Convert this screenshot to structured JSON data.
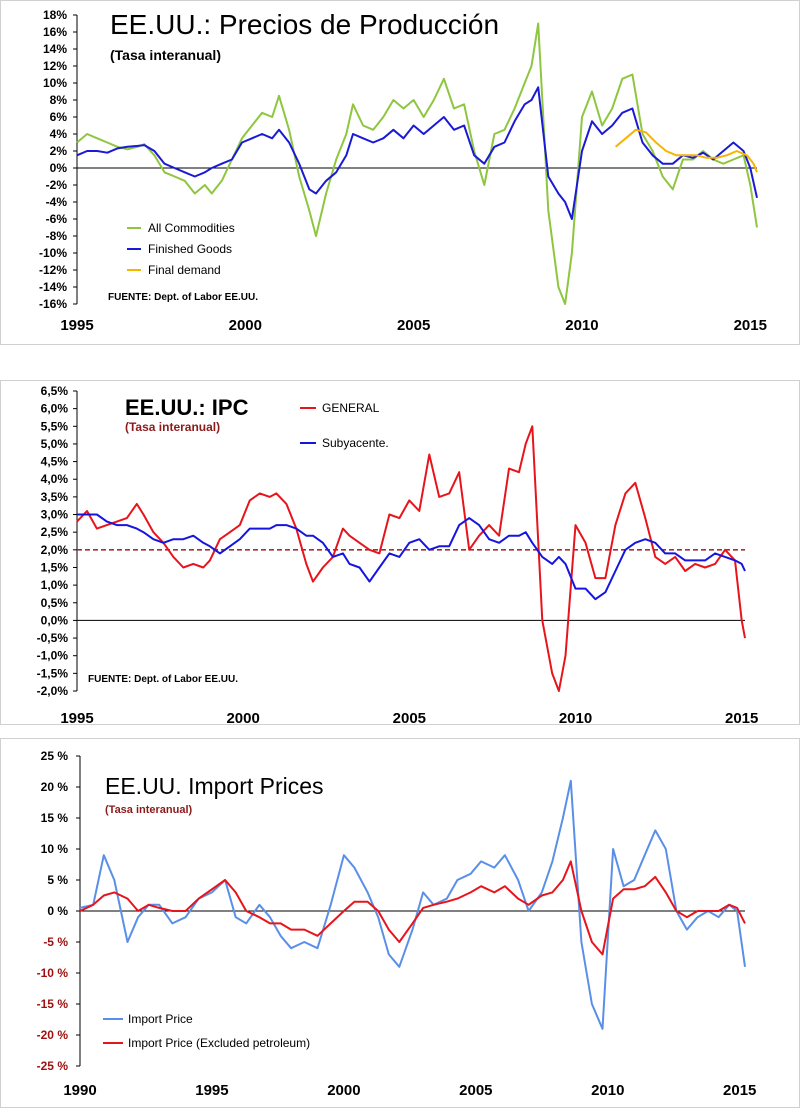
{
  "chart_data": [
    {
      "type": "line",
      "title": "EE.UU.: Precios de Producción",
      "subtitle": "(Tasa interanual)",
      "source": "FUENTE: Dept. of Labor EE.UU.",
      "y_tick_labels": [
        "18%",
        "16%",
        "14%",
        "12%",
        "10%",
        "8%",
        "6%",
        "4%",
        "2%",
        "0%",
        "-2%",
        "-4%",
        "-6%",
        "-8%",
        "-10%",
        "-12%",
        "-14%",
        "-16%"
      ],
      "x_tick_labels": [
        "1995",
        "2000",
        "2005",
        "2010",
        "2015"
      ],
      "ylim": [
        -16,
        18
      ],
      "xlim": [
        1995,
        2015.2
      ],
      "grid": false,
      "colors": {
        "All Commodities": "#8ec63f",
        "Finished Goods": "#1a1ad6",
        "Final demand": "#f7b500"
      },
      "series": [
        {
          "name": "All Commodities",
          "x": [
            1995.0,
            1995.3,
            1995.6,
            1995.9,
            1996.2,
            1996.5,
            1996.8,
            1997.0,
            1997.3,
            1997.6,
            1997.9,
            1998.2,
            1998.5,
            1998.8,
            1999.0,
            1999.3,
            1999.6,
            1999.9,
            2000.2,
            2000.5,
            2000.8,
            2001.0,
            2001.3,
            2001.6,
            2001.9,
            2002.1,
            2002.4,
            2002.7,
            2003.0,
            2003.2,
            2003.5,
            2003.8,
            2004.1,
            2004.4,
            2004.7,
            2005.0,
            2005.3,
            2005.6,
            2005.9,
            2006.2,
            2006.5,
            2006.8,
            2007.1,
            2007.4,
            2007.7,
            2008.0,
            2008.3,
            2008.5,
            2008.7,
            2009.0,
            2009.3,
            2009.5,
            2009.7,
            2010.0,
            2010.3,
            2010.6,
            2010.9,
            2011.2,
            2011.5,
            2011.8,
            2012.1,
            2012.4,
            2012.7,
            2013.0,
            2013.3,
            2013.6,
            2013.9,
            2014.2,
            2014.5,
            2014.8,
            2015.0,
            2015.2
          ],
          "y": [
            3.0,
            4.0,
            3.5,
            3.0,
            2.5,
            2.2,
            2.5,
            2.8,
            1.5,
            -0.5,
            -1.0,
            -1.5,
            -3.0,
            -2.0,
            -3.0,
            -1.5,
            1.0,
            3.5,
            5.0,
            6.5,
            6.0,
            8.5,
            4.5,
            -1.0,
            -5.0,
            -8.0,
            -3.0,
            1.0,
            4.0,
            7.5,
            5.0,
            4.5,
            6.0,
            8.0,
            7.0,
            8.0,
            6.0,
            8.0,
            10.5,
            7.0,
            7.5,
            2.0,
            -2.0,
            4.0,
            4.5,
            7.0,
            10.0,
            12.0,
            17.0,
            -5.0,
            -14.0,
            -16.0,
            -10.0,
            6.0,
            9.0,
            5.0,
            7.0,
            10.5,
            11.0,
            4.0,
            2.0,
            -1.0,
            -2.5,
            1.0,
            1.0,
            2.0,
            1.0,
            0.5,
            1.0,
            1.5,
            -2.0,
            -7.0
          ]
        },
        {
          "name": "Finished Goods",
          "x": [
            1995.0,
            1995.3,
            1995.6,
            1995.9,
            1996.2,
            1996.5,
            1996.8,
            1997.0,
            1997.3,
            1997.6,
            1997.9,
            1998.2,
            1998.5,
            1998.8,
            1999.0,
            1999.3,
            1999.6,
            1999.9,
            2000.2,
            2000.5,
            2000.8,
            2001.0,
            2001.3,
            2001.6,
            2001.9,
            2002.1,
            2002.4,
            2002.7,
            2003.0,
            2003.2,
            2003.5,
            2003.8,
            2004.1,
            2004.4,
            2004.7,
            2005.0,
            2005.3,
            2005.6,
            2005.9,
            2006.2,
            2006.5,
            2006.8,
            2007.1,
            2007.4,
            2007.7,
            2008.0,
            2008.3,
            2008.5,
            2008.7,
            2009.0,
            2009.3,
            2009.5,
            2009.7,
            2010.0,
            2010.3,
            2010.6,
            2010.9,
            2011.2,
            2011.5,
            2011.8,
            2012.1,
            2012.4,
            2012.7,
            2013.0,
            2013.3,
            2013.6,
            2013.9,
            2014.2,
            2014.5,
            2014.8,
            2015.0,
            2015.2
          ],
          "y": [
            1.5,
            2.0,
            2.0,
            1.8,
            2.3,
            2.5,
            2.6,
            2.7,
            2.0,
            0.5,
            0.0,
            -0.5,
            -1.0,
            -0.5,
            0.0,
            0.5,
            1.0,
            3.0,
            3.5,
            4.0,
            3.5,
            4.5,
            3.0,
            0.5,
            -2.5,
            -3.0,
            -1.5,
            -0.5,
            1.5,
            4.0,
            3.5,
            3.0,
            3.5,
            4.5,
            3.5,
            5.0,
            4.0,
            5.0,
            6.0,
            4.5,
            5.0,
            1.5,
            0.5,
            2.5,
            3.0,
            5.5,
            7.5,
            8.0,
            9.5,
            -1.0,
            -3.0,
            -4.0,
            -6.0,
            2.0,
            5.5,
            4.0,
            5.0,
            6.5,
            7.0,
            3.0,
            1.5,
            0.5,
            0.5,
            1.5,
            1.2,
            1.8,
            1.0,
            2.0,
            3.0,
            2.0,
            0.0,
            -3.5
          ]
        },
        {
          "name": "Final demand",
          "x": [
            2011.0,
            2011.3,
            2011.6,
            2011.9,
            2012.2,
            2012.5,
            2012.8,
            2013.1,
            2013.4,
            2013.7,
            2014.0,
            2014.3,
            2014.6,
            2014.9,
            2015.1,
            2015.2
          ],
          "y": [
            2.5,
            3.5,
            4.5,
            4.2,
            3.0,
            2.0,
            1.5,
            1.5,
            1.5,
            1.2,
            1.2,
            1.5,
            2.0,
            1.5,
            0.5,
            -0.5
          ]
        }
      ]
    },
    {
      "type": "line",
      "title": "EE.UU.: IPC",
      "subtitle": "(Tasa interanual)",
      "source": "FUENTE: Dept. of Labor EE.UU.",
      "y_tick_labels": [
        "6,5%",
        "6,0%",
        "5,5%",
        "5,0%",
        "4,5%",
        "4,0%",
        "3,5%",
        "3,0%",
        "2,5%",
        "2,0%",
        "1,5%",
        "1,0%",
        "0,5%",
        "0,0%",
        "-0,5%",
        "-1,0%",
        "-1,5%",
        "-2,0%"
      ],
      "x_tick_labels": [
        "1995",
        "2000",
        "2005",
        "2010",
        "2015"
      ],
      "ylim": [
        -2.0,
        6.5
      ],
      "xlim": [
        1995,
        2015.1
      ],
      "grid": false,
      "reference_line": 2.0,
      "colors": {
        "GENERAL": "#e8141c",
        "Subyacente.": "#1515e0",
        "reference": "#a03030"
      },
      "series": [
        {
          "name": "GENERAL",
          "x": [
            1995.0,
            1995.3,
            1995.6,
            1995.9,
            1996.2,
            1996.5,
            1996.8,
            1997.0,
            1997.3,
            1997.6,
            1997.9,
            1998.2,
            1998.5,
            1998.8,
            1999.0,
            1999.3,
            1999.6,
            1999.9,
            2000.2,
            2000.5,
            2000.8,
            2001.0,
            2001.3,
            2001.6,
            2001.9,
            2002.1,
            2002.4,
            2002.7,
            2003.0,
            2003.2,
            2003.5,
            2003.8,
            2004.1,
            2004.4,
            2004.7,
            2005.0,
            2005.3,
            2005.6,
            2005.9,
            2006.2,
            2006.5,
            2006.8,
            2007.1,
            2007.4,
            2007.7,
            2008.0,
            2008.3,
            2008.5,
            2008.7,
            2009.0,
            2009.3,
            2009.5,
            2009.7,
            2010.0,
            2010.3,
            2010.6,
            2010.9,
            2011.2,
            2011.5,
            2011.8,
            2012.1,
            2012.4,
            2012.7,
            2013.0,
            2013.3,
            2013.6,
            2013.9,
            2014.2,
            2014.5,
            2014.8,
            2015.0,
            2015.1
          ],
          "y": [
            2.8,
            3.1,
            2.6,
            2.7,
            2.8,
            2.9,
            3.3,
            3.0,
            2.5,
            2.2,
            1.8,
            1.5,
            1.6,
            1.5,
            1.7,
            2.3,
            2.5,
            2.7,
            3.4,
            3.6,
            3.5,
            3.6,
            3.3,
            2.6,
            1.6,
            1.1,
            1.5,
            1.8,
            2.6,
            2.4,
            2.2,
            2.0,
            1.9,
            3.0,
            2.9,
            3.4,
            3.1,
            4.7,
            3.5,
            3.6,
            4.2,
            2.0,
            2.4,
            2.7,
            2.4,
            4.3,
            4.2,
            5.0,
            5.5,
            0.0,
            -1.5,
            -2.0,
            -1.0,
            2.7,
            2.2,
            1.2,
            1.2,
            2.7,
            3.6,
            3.9,
            2.9,
            1.8,
            1.6,
            1.8,
            1.4,
            1.6,
            1.5,
            1.6,
            2.0,
            1.7,
            0.0,
            -0.5
          ]
        },
        {
          "name": "Subyacente.",
          "x": [
            1995.0,
            1995.3,
            1995.6,
            1995.9,
            1996.2,
            1996.5,
            1996.8,
            1997.0,
            1997.3,
            1997.6,
            1997.9,
            1998.2,
            1998.5,
            1998.8,
            1999.0,
            1999.3,
            1999.6,
            1999.9,
            2000.2,
            2000.5,
            2000.8,
            2001.0,
            2001.3,
            2001.6,
            2001.9,
            2002.1,
            2002.4,
            2002.7,
            2003.0,
            2003.2,
            2003.5,
            2003.8,
            2004.1,
            2004.4,
            2004.7,
            2005.0,
            2005.3,
            2005.6,
            2005.9,
            2006.2,
            2006.5,
            2006.8,
            2007.1,
            2007.4,
            2007.7,
            2008.0,
            2008.3,
            2008.5,
            2008.7,
            2009.0,
            2009.3,
            2009.5,
            2009.7,
            2010.0,
            2010.3,
            2010.6,
            2010.9,
            2011.2,
            2011.5,
            2011.8,
            2012.1,
            2012.4,
            2012.7,
            2013.0,
            2013.3,
            2013.6,
            2013.9,
            2014.2,
            2014.5,
            2014.8,
            2015.0,
            2015.1
          ],
          "y": [
            3.0,
            3.0,
            3.0,
            2.8,
            2.7,
            2.7,
            2.6,
            2.5,
            2.3,
            2.2,
            2.3,
            2.3,
            2.4,
            2.2,
            2.1,
            1.9,
            2.1,
            2.3,
            2.6,
            2.6,
            2.6,
            2.7,
            2.7,
            2.6,
            2.4,
            2.4,
            2.2,
            1.8,
            1.9,
            1.6,
            1.5,
            1.1,
            1.5,
            1.9,
            1.8,
            2.2,
            2.3,
            2.0,
            2.1,
            2.1,
            2.7,
            2.9,
            2.7,
            2.3,
            2.2,
            2.4,
            2.4,
            2.5,
            2.2,
            1.8,
            1.6,
            1.8,
            1.6,
            0.9,
            0.9,
            0.6,
            0.8,
            1.4,
            2.0,
            2.2,
            2.3,
            2.2,
            1.9,
            1.9,
            1.7,
            1.7,
            1.7,
            1.9,
            1.8,
            1.7,
            1.6,
            1.4
          ]
        }
      ]
    },
    {
      "type": "line",
      "title": "EE.UU. Import Prices",
      "subtitle": "(Tasa interanual)",
      "y_tick_labels": [
        "25 %",
        "20 %",
        "15 %",
        "10 %",
        "5 %",
        "0 %",
        "-5 %",
        "-10 %",
        "-15 %",
        "-20 %",
        "-25 %"
      ],
      "x_tick_labels": [
        "1990",
        "1995",
        "2000",
        "2005",
        "2010",
        "2015"
      ],
      "ylim": [
        -25,
        25
      ],
      "xlim": [
        1990,
        2015.2
      ],
      "grid": false,
      "colors": {
        "Import Price": "#5a8fe8",
        "Import Price (Excluded petroleum)": "#e8141c"
      },
      "series": [
        {
          "name": "Import Price",
          "x": [
            1990.0,
            1990.5,
            1990.9,
            1991.3,
            1991.8,
            1992.2,
            1992.6,
            1993.0,
            1993.5,
            1994.0,
            1994.5,
            1995.0,
            1995.5,
            1995.9,
            1996.3,
            1996.8,
            1997.2,
            1997.6,
            1998.0,
            1998.5,
            1999.0,
            1999.5,
            2000.0,
            2000.4,
            2000.9,
            2001.3,
            2001.7,
            2002.1,
            2002.6,
            2003.0,
            2003.4,
            2003.9,
            2004.3,
            2004.8,
            2005.2,
            2005.7,
            2006.1,
            2006.6,
            2007.0,
            2007.5,
            2007.9,
            2008.3,
            2008.6,
            2009.0,
            2009.4,
            2009.8,
            2010.2,
            2010.6,
            2011.0,
            2011.4,
            2011.8,
            2012.2,
            2012.6,
            2013.0,
            2013.4,
            2013.8,
            2014.2,
            2014.6,
            2014.9,
            2015.2
          ],
          "y": [
            0.5,
            1.0,
            9.0,
            5.0,
            -5.0,
            -1.0,
            1.0,
            1.0,
            -2.0,
            -1.0,
            2.0,
            3.0,
            5.0,
            -1.0,
            -2.0,
            1.0,
            -1.0,
            -4.0,
            -6.0,
            -5.0,
            -6.0,
            1.0,
            9.0,
            7.0,
            3.0,
            -1.0,
            -7.0,
            -9.0,
            -3.0,
            3.0,
            1.0,
            2.0,
            5.0,
            6.0,
            8.0,
            7.0,
            9.0,
            5.0,
            0.0,
            3.0,
            8.0,
            15.0,
            21.0,
            -5.0,
            -15.0,
            -19.0,
            10.0,
            4.0,
            5.0,
            9.0,
            13.0,
            10.0,
            0.0,
            -3.0,
            -1.0,
            0.0,
            -1.0,
            1.0,
            0.0,
            -9.0
          ]
        },
        {
          "name": "Import Price (Excluded petroleum)",
          "x": [
            1990.0,
            1990.5,
            1990.9,
            1991.3,
            1991.8,
            1992.2,
            1992.6,
            1993.0,
            1993.5,
            1994.0,
            1994.5,
            1995.0,
            1995.5,
            1995.9,
            1996.3,
            1996.8,
            1997.2,
            1997.6,
            1998.0,
            1998.5,
            1999.0,
            1999.5,
            2000.0,
            2000.4,
            2000.9,
            2001.3,
            2001.7,
            2002.1,
            2002.6,
            2003.0,
            2003.4,
            2003.9,
            2004.3,
            2004.8,
            2005.2,
            2005.7,
            2006.1,
            2006.6,
            2007.0,
            2007.5,
            2007.9,
            2008.3,
            2008.6,
            2009.0,
            2009.4,
            2009.8,
            2010.2,
            2010.6,
            2011.0,
            2011.4,
            2011.8,
            2012.2,
            2012.6,
            2013.0,
            2013.4,
            2013.8,
            2014.2,
            2014.6,
            2014.9,
            2015.2
          ],
          "y": [
            0.0,
            1.0,
            2.5,
            3.0,
            2.0,
            0.0,
            1.0,
            0.5,
            0.0,
            0.0,
            2.0,
            3.5,
            5.0,
            3.0,
            0.0,
            -1.0,
            -2.0,
            -2.0,
            -3.0,
            -3.0,
            -4.0,
            -2.0,
            0.0,
            1.5,
            1.5,
            0.0,
            -3.0,
            -5.0,
            -2.0,
            0.5,
            1.0,
            1.5,
            2.0,
            3.0,
            4.0,
            3.0,
            4.0,
            2.0,
            1.0,
            2.5,
            3.0,
            5.0,
            8.0,
            0.0,
            -5.0,
            -7.0,
            2.0,
            3.5,
            3.5,
            4.0,
            5.5,
            3.0,
            0.0,
            -1.0,
            0.0,
            0.0,
            0.0,
            1.0,
            0.5,
            -2.0
          ]
        }
      ]
    }
  ]
}
